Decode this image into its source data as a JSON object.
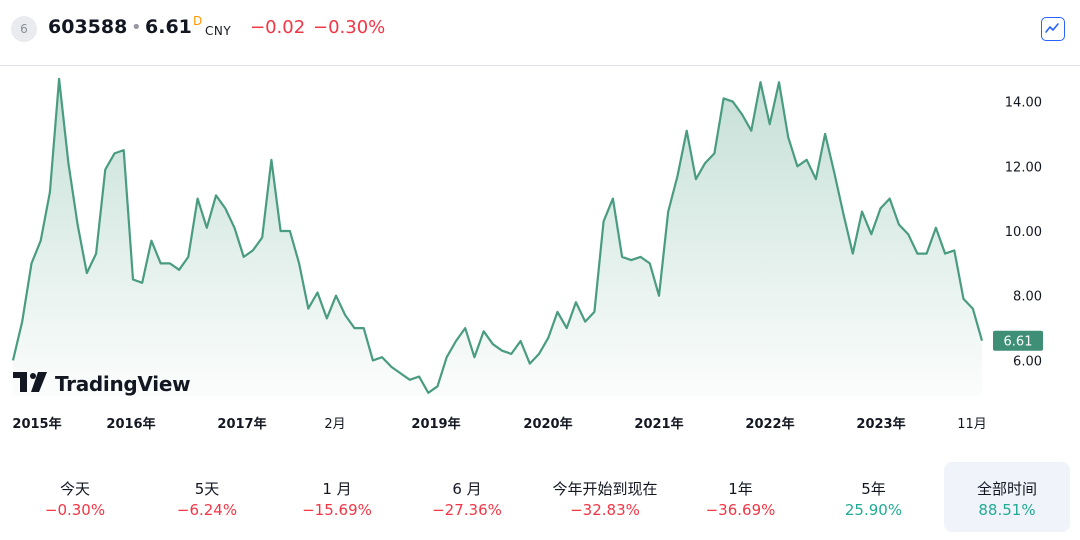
{
  "header": {
    "badge": "6",
    "symbol": "603588",
    "separator": "•",
    "price": "6.61",
    "price_flag": "D",
    "currency": "CNY",
    "change": "−0.02",
    "change_pct": "−0.30%"
  },
  "logo": {
    "text": "TradingView"
  },
  "colors": {
    "line": "#4a9c80",
    "negative": "#f23645",
    "positive": "#22ab94",
    "price_label_bg": "#3f8f76"
  },
  "chart_data": {
    "type": "area",
    "y_ticks": [
      "14.00",
      "12.00",
      "10.00",
      "8.00",
      "6.00"
    ],
    "y_tick_values": [
      14,
      12,
      10,
      8,
      6
    ],
    "x_ticks": [
      "2015年",
      "2016年",
      "2017年",
      "2月",
      "2019年",
      "2020年",
      "2021年",
      "2022年",
      "2023年",
      "11月"
    ],
    "ylim": [
      4.9,
      15.1
    ],
    "last_price_label": "6.61",
    "last_price": 6.61,
    "series": [
      {
        "values": [
          6.0,
          7.2,
          9.0,
          9.7,
          11.2,
          14.7,
          12.1,
          10.2,
          8.7,
          9.3,
          11.9,
          12.4,
          12.5,
          8.5,
          8.4,
          9.7,
          9.0,
          9.0,
          8.8,
          9.2,
          11.0,
          10.1,
          11.1,
          10.7,
          10.1,
          9.2,
          9.4,
          9.8,
          12.2,
          10.0,
          10.0,
          9.0,
          7.6,
          8.1,
          7.3,
          8.0,
          7.4,
          7.0,
          7.0,
          6.0,
          6.1,
          5.8,
          5.6,
          5.4,
          5.5,
          5.0,
          5.2,
          6.1,
          6.6,
          7.0,
          6.1,
          6.9,
          6.5,
          6.3,
          6.2,
          6.6,
          5.9,
          6.2,
          6.7,
          7.5,
          7.0,
          7.8,
          7.2,
          7.5,
          10.3,
          11.0,
          9.2,
          9.1,
          9.2,
          9.0,
          8.0,
          10.6,
          11.7,
          13.1,
          11.6,
          12.1,
          12.4,
          14.1,
          14.0,
          13.6,
          13.1,
          14.6,
          13.3,
          14.6,
          12.9,
          12.0,
          12.2,
          11.6,
          13.0,
          11.8,
          10.5,
          9.3,
          10.6,
          9.9,
          10.7,
          11.0,
          10.2,
          9.9,
          9.3,
          9.3,
          10.1,
          9.3,
          9.4,
          7.9,
          7.6,
          6.61
        ]
      }
    ]
  },
  "periods": [
    {
      "label": "今天",
      "value": "−0.30%",
      "sign": "neg"
    },
    {
      "label": "5天",
      "value": "−6.24%",
      "sign": "neg"
    },
    {
      "label": "1 月",
      "value": "−15.69%",
      "sign": "neg"
    },
    {
      "label": "6 月",
      "value": "−27.36%",
      "sign": "neg"
    },
    {
      "label": "今年开始到现在",
      "value": "−32.83%",
      "sign": "neg"
    },
    {
      "label": "1年",
      "value": "−36.69%",
      "sign": "neg"
    },
    {
      "label": "5年",
      "value": "25.90%",
      "sign": "pos"
    },
    {
      "label": "全部时间",
      "value": "88.51%",
      "sign": "pos",
      "active": true
    }
  ]
}
